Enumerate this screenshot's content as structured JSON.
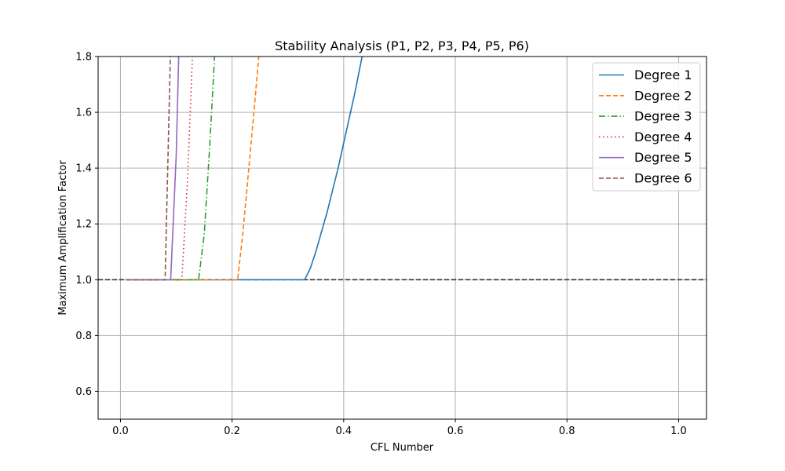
{
  "chart_data": {
    "type": "line",
    "title": "Stability Analysis (P1, P2, P3, P4, P5, P6)",
    "xlabel": "CFL Number",
    "ylabel": "Maximum Amplification Factor",
    "xlim": [
      -0.04,
      1.05
    ],
    "ylim": [
      0.5,
      1.8
    ],
    "xticks": [
      0.0,
      0.2,
      0.4,
      0.6,
      0.8,
      1.0
    ],
    "xtick_labels": [
      "0.0",
      "0.2",
      "0.4",
      "0.6",
      "0.8",
      "1.0"
    ],
    "yticks": [
      0.6,
      0.8,
      1.0,
      1.2,
      1.4,
      1.6,
      1.8
    ],
    "ytick_labels": [
      "0.6",
      "0.8",
      "1.0",
      "1.2",
      "1.4",
      "1.6",
      "1.8"
    ],
    "grid": true,
    "legend_position": "top-right",
    "reference_line": {
      "y": 1.0,
      "color": "#333333",
      "style": "dashed"
    },
    "series": [
      {
        "name": "Degree 1",
        "color": "#1f77b4",
        "style": "solid",
        "x": [
          0.01,
          0.33,
          0.34,
          0.35,
          0.36,
          0.37,
          0.38,
          0.39,
          0.4,
          0.41,
          0.42,
          0.43,
          0.44
        ],
        "y": [
          1.0,
          1.0,
          1.04,
          1.1,
          1.17,
          1.24,
          1.32,
          1.4,
          1.49,
          1.58,
          1.67,
          1.77,
          1.87
        ]
      },
      {
        "name": "Degree 2",
        "color": "#ff7f0e",
        "style": "dashed",
        "x": [
          0.01,
          0.21,
          0.22,
          0.23,
          0.24,
          0.25
        ],
        "y": [
          1.0,
          1.0,
          1.18,
          1.4,
          1.62,
          1.85
        ]
      },
      {
        "name": "Degree 3",
        "color": "#2ca02c",
        "style": "dashdot",
        "x": [
          0.01,
          0.14,
          0.15,
          0.16,
          0.17
        ],
        "y": [
          1.0,
          1.0,
          1.16,
          1.48,
          1.85
        ]
      },
      {
        "name": "Degree 4",
        "color": "#d62728",
        "style": "dotted",
        "x": [
          0.01,
          0.11,
          0.12,
          0.13
        ],
        "y": [
          1.0,
          1.0,
          1.35,
          1.85
        ]
      },
      {
        "name": "Degree 5",
        "color": "#9467bd",
        "style": "solid",
        "x": [
          0.01,
          0.09,
          0.1,
          0.105
        ],
        "y": [
          1.0,
          1.0,
          1.45,
          1.85
        ]
      },
      {
        "name": "Degree 6",
        "color": "#8c564b",
        "style": "dashed",
        "x": [
          0.01,
          0.08,
          0.09
        ],
        "y": [
          1.0,
          1.0,
          1.85
        ]
      }
    ]
  }
}
